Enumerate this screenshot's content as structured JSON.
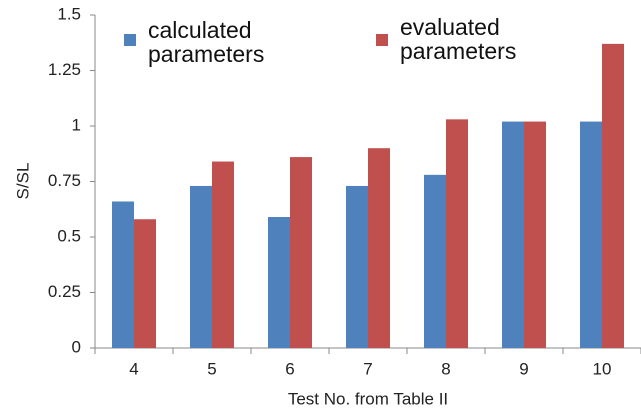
{
  "chart_data": {
    "type": "bar",
    "x_label": "Test No. from Table II",
    "y_label": "S/SL",
    "categories": [
      "4",
      "5",
      "6",
      "7",
      "8",
      "9",
      "10"
    ],
    "series": [
      {
        "name": "calculated parameters",
        "color": "#4f81bd",
        "values": [
          0.66,
          0.73,
          0.59,
          0.73,
          0.78,
          1.02,
          1.02
        ]
      },
      {
        "name": "evaluated parameters",
        "color": "#c0504d",
        "values": [
          0.58,
          0.84,
          0.86,
          0.9,
          1.03,
          1.02,
          1.37
        ]
      }
    ],
    "ylim": [
      0,
      1.5
    ],
    "yticks": [
      0,
      0.25,
      0.5,
      0.75,
      1,
      1.25,
      1.5
    ]
  }
}
